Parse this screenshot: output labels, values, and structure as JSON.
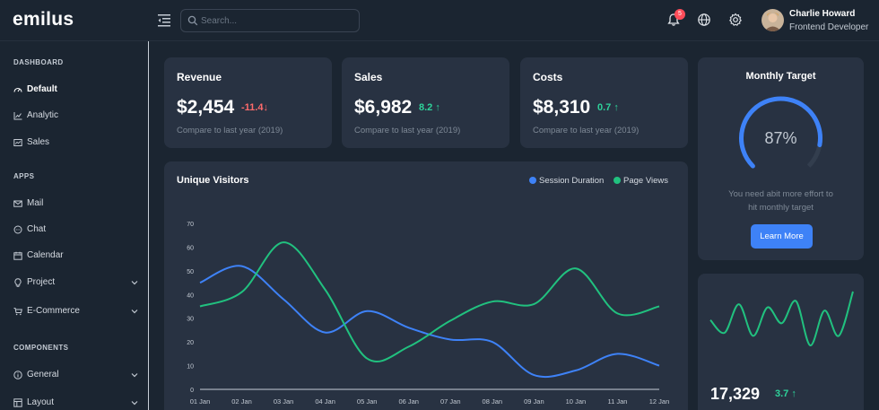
{
  "app": {
    "logo": "emilus"
  },
  "search": {
    "placeholder": "Search..."
  },
  "header": {
    "notification_count": "5",
    "user_name": "Charlie Howard",
    "user_role": "Frontend Developer"
  },
  "sidebar": {
    "sections": [
      {
        "title": "DASHBOARD"
      },
      {
        "title": "APPS"
      },
      {
        "title": "COMPONENTS"
      }
    ],
    "items": [
      {
        "label": "Default",
        "icon": "dashboard-icon"
      },
      {
        "label": "Analytic",
        "icon": "chart-icon"
      },
      {
        "label": "Sales",
        "icon": "sales-icon"
      },
      {
        "label": "Mail",
        "icon": "mail-icon"
      },
      {
        "label": "Chat",
        "icon": "chat-icon"
      },
      {
        "label": "Calendar",
        "icon": "calendar-icon"
      },
      {
        "label": "Project",
        "icon": "bulb-icon"
      },
      {
        "label": "E-Commerce",
        "icon": "cart-icon"
      },
      {
        "label": "General",
        "icon": "info-icon"
      },
      {
        "label": "Layout",
        "icon": "layout-icon"
      }
    ]
  },
  "stats": [
    {
      "title": "Revenue",
      "value": "$2,454",
      "change": "-11.4",
      "direction": "down",
      "note": "Compare to last year (2019)"
    },
    {
      "title": "Sales",
      "value": "$6,982",
      "change": "8.2",
      "direction": "up",
      "note": "Compare to last year (2019)"
    },
    {
      "title": "Costs",
      "value": "$8,310",
      "change": "0.7",
      "direction": "up",
      "note": "Compare to last year (2019)"
    }
  ],
  "visitors": {
    "title": "Unique Visitors",
    "legend": [
      "Session Duration",
      "Page Views"
    ]
  },
  "chart_data": {
    "type": "line",
    "title": "Unique Visitors",
    "x": [
      "01 Jan",
      "02 Jan",
      "03 Jan",
      "04 Jan",
      "05 Jan",
      "06 Jan",
      "07 Jan",
      "08 Jan",
      "09 Jan",
      "10 Jan",
      "11 Jan",
      "12 Jan"
    ],
    "y_ticks": [
      0,
      10,
      20,
      30,
      40,
      50,
      60,
      70
    ],
    "ylim": [
      0,
      70
    ],
    "series": [
      {
        "name": "Session Duration",
        "color": "#3e82f7",
        "values": [
          45,
          52,
          38,
          24,
          33,
          26,
          21,
          20,
          6,
          8,
          15,
          10
        ]
      },
      {
        "name": "Page Views",
        "color": "#21c17f",
        "values": [
          35,
          41,
          62,
          42,
          13,
          18,
          29,
          37,
          36,
          51,
          32,
          35
        ]
      }
    ]
  },
  "target": {
    "title": "Monthly Target",
    "percent_value": 87,
    "percent_label": "87%",
    "message_line1": "You need abit more effort to",
    "message_line2": "hit monthly target",
    "button": "Learn More"
  },
  "spark": {
    "value": "17,329",
    "change": "3.7",
    "color": "#21c17f",
    "values": [
      30,
      22,
      40,
      20,
      38,
      28,
      42,
      14,
      36,
      20,
      48
    ]
  }
}
